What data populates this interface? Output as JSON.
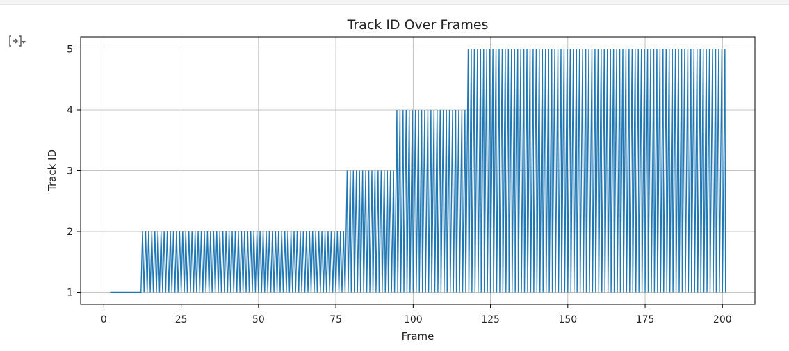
{
  "output_toggle": {
    "icon": "output-toggle-icon"
  },
  "chart_data": {
    "type": "line",
    "title": "Track ID Over Frames",
    "xlabel": "Frame",
    "ylabel": "Track ID",
    "xlim": [
      -7.5,
      210.5
    ],
    "ylim": [
      0.8,
      5.2
    ],
    "xticks": [
      0,
      25,
      50,
      75,
      100,
      125,
      150,
      175,
      200
    ],
    "yticks": [
      1,
      2,
      3,
      4,
      5
    ],
    "grid": true,
    "color": "#1f77b4",
    "series": [
      {
        "segments": [
          {
            "frame_start": 2,
            "frame_end": 12,
            "track_ids": [
              1
            ]
          },
          {
            "frame_start": 12,
            "frame_end": 78,
            "track_ids": [
              1,
              2
            ]
          },
          {
            "frame_start": 78,
            "frame_end": 94,
            "track_ids": [
              1,
              2,
              3
            ]
          },
          {
            "frame_start": 94,
            "frame_end": 117,
            "track_ids": [
              1,
              2,
              3,
              4
            ]
          },
          {
            "frame_start": 117,
            "frame_end": 201,
            "track_ids": [
              1,
              2,
              3,
              4,
              5
            ]
          }
        ]
      }
    ]
  }
}
